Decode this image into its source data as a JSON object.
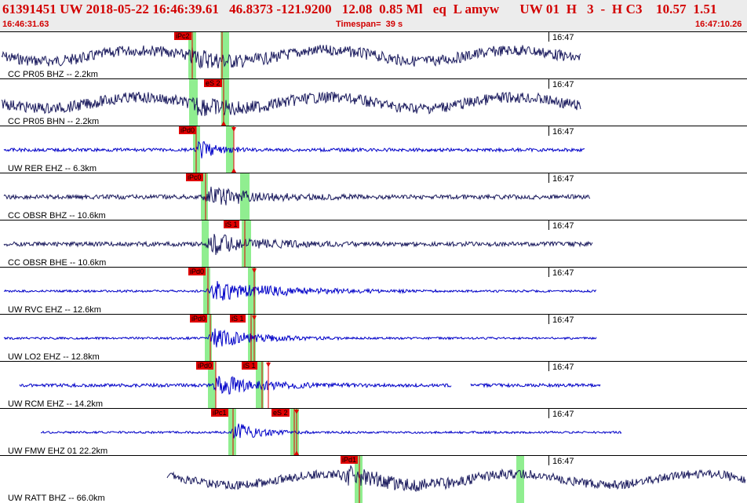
{
  "header": {
    "event_line": "61391451 UW 2018-05-22 16:46:39.61   46.8373 -121.9200   12.08  0.85 Ml   eq  L amyw      UW 01  H   3  -  H C3    10.57  1.51",
    "start_time": "16:46:31.63",
    "timespan": "Timespan=  39 s",
    "end_time": "16:47:10.26"
  },
  "colors": {
    "header_text": "#d20000",
    "trace_dark": "#1b1b5e",
    "trace_blue": "#0000c8",
    "pick_window": "#90ee90",
    "pick_label": "#e00000"
  },
  "panels": [
    {
      "label": "CC PR05 BHZ -- 2.2km",
      "time": "16:47",
      "trace_color": "blue-dark",
      "phases": [
        {
          "label": "iPc2"
        }
      ]
    },
    {
      "label": "CC PR05 BHN -- 2.2km",
      "time": "16:47",
      "trace_color": "blue-dark",
      "phases": [
        {
          "label": "eS 2"
        }
      ]
    },
    {
      "label": "UW RER EHZ -- 6.3km",
      "time": "16:47",
      "trace_color": "blue",
      "phases": [
        {
          "label": "iPd0"
        }
      ]
    },
    {
      "label": "CC OBSR BHZ -- 10.6km",
      "time": "16:47",
      "trace_color": "blue-dark",
      "phases": [
        {
          "label": "iPc0"
        }
      ]
    },
    {
      "label": "CC OBSR BHE -- 10.6km",
      "time": "16:47",
      "trace_color": "blue-dark",
      "phases": [
        {
          "label": "iS 1"
        }
      ]
    },
    {
      "label": "UW RVC EHZ -- 12.6km",
      "time": "16:47",
      "trace_color": "blue",
      "phases": [
        {
          "label": "iPd0"
        }
      ]
    },
    {
      "label": "UW LO2 EHZ -- 12.8km",
      "time": "16:47",
      "trace_color": "blue",
      "phases": [
        {
          "label": "iPd0"
        },
        {
          "label": "iS 1"
        }
      ]
    },
    {
      "label": "UW RCM EHZ -- 14.2km",
      "time": "16:47",
      "trace_color": "blue",
      "phases": [
        {
          "label": "iPd0"
        },
        {
          "label": "iS 1"
        }
      ]
    },
    {
      "label": "UW FMW EHZ 01 22.2km",
      "time": "16:47",
      "trace_color": "blue",
      "phases": [
        {
          "label": "iPc1"
        },
        {
          "label": "eS 2"
        }
      ]
    },
    {
      "label": "UW RATT BHZ -- 66.0km",
      "time": "16:47",
      "trace_color": "blue-dark",
      "phases": [
        {
          "label": "iPd1"
        }
      ]
    }
  ]
}
